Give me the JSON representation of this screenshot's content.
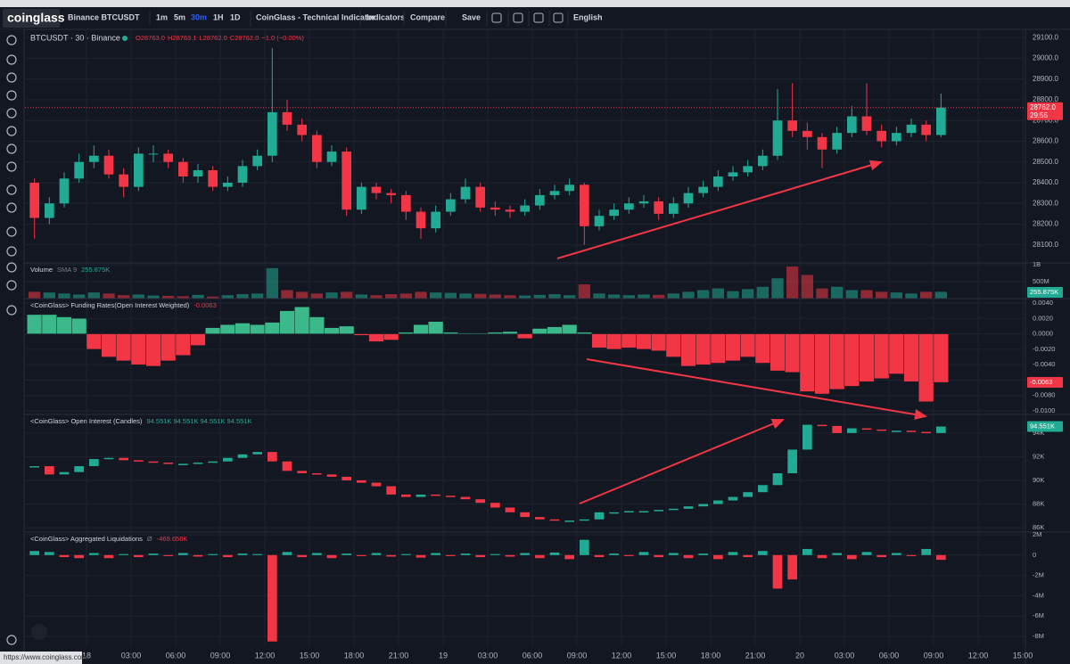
{
  "toolbar": {
    "logo": "coinglass",
    "symbol": "Binance BTCUSDT",
    "intervals": [
      "1m",
      "5m",
      "30m",
      "1H",
      "1D"
    ],
    "active_interval": 2,
    "buttons": [
      "CoinGlass - Technical Indicator",
      "Indicators",
      "Compare",
      "Save"
    ],
    "language": "English"
  },
  "status_url": "https://www.coinglass.com",
  "chart_data": {
    "type": "candlestick",
    "title": "BTCUSDT · 30 · Binance",
    "header_values": [
      "O28763.0",
      "H28763.1",
      "L28762.0",
      "C28762.0",
      "−1.0 (−0.00%)"
    ],
    "up_color": "#22ab94",
    "down_color": "#f23645",
    "grid": true,
    "xlim": [
      -4.14,
      63.18
    ],
    "xticks": [
      {
        "value": 0,
        "label": "18"
      },
      {
        "value": 3,
        "label": "03:00"
      },
      {
        "value": 6,
        "label": "06:00"
      },
      {
        "value": 9,
        "label": "09:00"
      },
      {
        "value": 12,
        "label": "12:00"
      },
      {
        "value": 15,
        "label": "15:00"
      },
      {
        "value": 18,
        "label": "18:00"
      },
      {
        "value": 21,
        "label": "21:00"
      },
      {
        "value": 24,
        "label": "19"
      },
      {
        "value": 27,
        "label": "03:00"
      },
      {
        "value": 30,
        "label": "06:00"
      },
      {
        "value": 33,
        "label": "09:00"
      },
      {
        "value": 36,
        "label": "12:00"
      },
      {
        "value": 39,
        "label": "15:00"
      },
      {
        "value": 42,
        "label": "18:00"
      },
      {
        "value": 45,
        "label": "21:00"
      },
      {
        "value": 48,
        "label": "20"
      },
      {
        "value": 51,
        "label": "03:00"
      },
      {
        "value": 54,
        "label": "06:00"
      },
      {
        "value": 57,
        "label": "09:00"
      },
      {
        "value": 60,
        "label": "12:00"
      },
      {
        "value": 63,
        "label": "15:00"
      }
    ],
    "ylim": [
      28013,
      29135
    ],
    "yticks": [
      {
        "value": 28100,
        "label": "28100.0"
      },
      {
        "value": 28200,
        "label": "28200.0"
      },
      {
        "value": 28300,
        "label": "28300.0"
      },
      {
        "value": 28400,
        "label": "28400.0"
      },
      {
        "value": 28500,
        "label": "28500.0"
      },
      {
        "value": 28600,
        "label": "28600.0"
      },
      {
        "value": 28700,
        "label": "28700.0"
      },
      {
        "value": 28800,
        "label": "28800.0"
      },
      {
        "value": 28900,
        "label": "28900.0"
      },
      {
        "value": 29000,
        "label": "29000.0"
      },
      {
        "value": 29100,
        "label": "29100.0"
      }
    ],
    "last_price_label": "28762.0",
    "countdown": "29:55",
    "x": [
      -3.5,
      -2.5,
      -1.5,
      -0.5,
      0.5,
      1.5,
      2.5,
      3.5,
      4.5,
      5.5,
      6.5,
      7.5,
      8.5,
      9.5,
      10.5,
      11.5,
      12.5,
      13.5,
      14.5,
      15.5,
      16.5,
      17.5,
      18.5,
      19.5,
      20.5,
      21.5,
      22.5,
      23.5,
      24.5,
      25.5,
      26.5,
      27.5,
      28.5,
      29.5,
      30.5,
      31.5,
      32.5,
      33.5,
      34.5,
      35.5,
      36.5,
      37.5,
      38.5,
      39.5,
      40.5,
      41.5,
      42.5,
      43.5,
      44.5,
      45.5,
      46.5,
      47.5,
      48.5,
      49.5,
      50.5,
      51.5,
      52.5,
      53.5,
      54.5,
      55.5,
      56.5,
      57.5
    ],
    "open": [
      28400,
      28230,
      28300,
      28420,
      28500,
      28530,
      28440,
      28380,
      28540,
      28540,
      28500,
      28430,
      28460,
      28380,
      28400,
      28480,
      28530,
      28740,
      28680,
      28630,
      28500,
      28550,
      28270,
      28380,
      28350,
      28340,
      28260,
      28180,
      28260,
      28320,
      28380,
      28280,
      28270,
      28260,
      28290,
      28340,
      28360,
      28390,
      28190,
      28240,
      28270,
      28300,
      28310,
      28250,
      28300,
      28350,
      28380,
      28430,
      28450,
      28480,
      28530,
      28700,
      28650,
      28620,
      28560,
      28640,
      28720,
      28650,
      28600,
      28640,
      28680,
      28630
    ],
    "high": [
      28420,
      28330,
      28450,
      28540,
      28580,
      28560,
      28470,
      28570,
      28580,
      28560,
      28520,
      28490,
      28480,
      28430,
      28510,
      28560,
      29050,
      28800,
      28710,
      28650,
      28580,
      28570,
      28400,
      28400,
      28370,
      28360,
      28280,
      28290,
      28350,
      28420,
      28400,
      28310,
      28290,
      28320,
      28370,
      28390,
      28420,
      28400,
      28270,
      28300,
      28330,
      28340,
      28330,
      28330,
      28380,
      28410,
      28460,
      28480,
      28510,
      28560,
      28850,
      28880,
      28690,
      28640,
      28670,
      28770,
      28880,
      28680,
      28670,
      28710,
      28700,
      28830
    ],
    "low": [
      28130,
      28200,
      28280,
      28400,
      28470,
      28420,
      28330,
      28360,
      28500,
      28470,
      28400,
      28400,
      28360,
      28360,
      28380,
      28460,
      28500,
      28650,
      28600,
      28470,
      28480,
      28240,
      28250,
      28320,
      28300,
      28220,
      28130,
      28160,
      28240,
      28300,
      28260,
      28240,
      28230,
      28240,
      28270,
      28320,
      28340,
      28100,
      28170,
      28220,
      28250,
      28280,
      28220,
      28230,
      28280,
      28330,
      28360,
      28410,
      28430,
      28460,
      28510,
      28620,
      28560,
      28470,
      28540,
      28620,
      28630,
      28570,
      28580,
      28620,
      28600,
      28620
    ],
    "close": [
      28230,
      28300,
      28420,
      28500,
      28530,
      28440,
      28380,
      28540,
      28540,
      28500,
      28430,
      28460,
      28380,
      28400,
      28480,
      28530,
      28740,
      28680,
      28630,
      28500,
      28550,
      28270,
      28380,
      28350,
      28340,
      28260,
      28180,
      28260,
      28320,
      28380,
      28280,
      28270,
      28260,
      28290,
      28340,
      28360,
      28390,
      28190,
      28240,
      28270,
      28300,
      28310,
      28250,
      28300,
      28350,
      28380,
      28430,
      28450,
      28480,
      28530,
      28700,
      28650,
      28620,
      28560,
      28640,
      28720,
      28650,
      28600,
      28640,
      28680,
      28630,
      28762
    ],
    "panes": [
      {
        "type": "volume",
        "title": "Volume",
        "subtitle": "SMA 9",
        "legend_value": "255.875K",
        "badge": "255.875K",
        "ylim": [
          0,
          1055000000
        ],
        "yticks": [
          {
            "value": 500000000,
            "label": "500M"
          },
          {
            "value": 1000000000,
            "label": "1B"
          }
        ],
        "values": [
          200000000,
          180000000,
          150000000,
          120000000,
          180000000,
          150000000,
          100000000,
          120000000,
          90000000,
          80000000,
          70000000,
          110000000,
          60000000,
          100000000,
          130000000,
          150000000,
          900000000,
          250000000,
          200000000,
          150000000,
          180000000,
          200000000,
          120000000,
          100000000,
          130000000,
          150000000,
          200000000,
          180000000,
          170000000,
          150000000,
          140000000,
          120000000,
          100000000,
          90000000,
          110000000,
          130000000,
          100000000,
          420000000,
          150000000,
          120000000,
          100000000,
          120000000,
          110000000,
          150000000,
          200000000,
          250000000,
          300000000,
          220000000,
          280000000,
          350000000,
          600000000,
          950000000,
          700000000,
          300000000,
          350000000,
          250000000,
          250000000,
          200000000,
          180000000,
          150000000,
          200000000,
          200000000
        ]
      },
      {
        "type": "histogram",
        "title": "<CoinGlass> Funding Rates(Open Interest Weighted)",
        "legend_value": "-0.0063",
        "badge": "-0.0063",
        "pos_color": "#3bb98a",
        "neg_color": "#f23645",
        "ylim": [
          -0.01046,
          0.00458
        ],
        "yticks": [
          {
            "value": -0.01,
            "label": "-0.0100"
          },
          {
            "value": -0.008,
            "label": "-0.0080"
          },
          {
            "value": -0.006,
            "label": "-0.0060"
          },
          {
            "value": -0.004,
            "label": "-0.0040"
          },
          {
            "value": -0.002,
            "label": "-0.0020"
          },
          {
            "value": 0,
            "label": "0.0000"
          },
          {
            "value": 0.002,
            "label": "0.0020"
          },
          {
            "value": 0.004,
            "label": "0.0040"
          }
        ],
        "values": [
          0.0025,
          0.0025,
          0.0022,
          0.002,
          -0.002,
          -0.003,
          -0.0035,
          -0.004,
          -0.0042,
          -0.0035,
          -0.0028,
          -0.0015,
          0.0008,
          0.0012,
          0.0014,
          0.0012,
          0.0015,
          0.003,
          0.0035,
          0.0022,
          0.0008,
          0.001,
          -0.0002,
          -0.001,
          -0.0008,
          0.0002,
          0.0012,
          0.0016,
          0.0002,
          0.0001,
          0.0001,
          0.0002,
          0.0003,
          -0.0006,
          0.0007,
          0.0009,
          0.0012,
          0.0002,
          -0.0018,
          -0.002,
          -0.0018,
          -0.002,
          -0.0022,
          -0.003,
          -0.0042,
          -0.004,
          -0.0038,
          -0.0035,
          -0.003,
          -0.0038,
          -0.0048,
          -0.005,
          -0.0075,
          -0.0078,
          -0.0072,
          -0.0068,
          -0.0062,
          -0.0058,
          -0.0052,
          -0.0062,
          -0.0088,
          -0.0063
        ]
      },
      {
        "type": "oi_candles",
        "title": "<CoinGlass> Open Interest (Candles)",
        "legend_value": "94.551K 94.551K 94.551K 94.551K",
        "badge": "94.551K",
        "ylim": [
          85625,
          95573
        ],
        "yticks": [
          {
            "value": 86000,
            "label": "86K"
          },
          {
            "value": 88000,
            "label": "88K"
          },
          {
            "value": 90000,
            "label": "90K"
          },
          {
            "value": 92000,
            "label": "92K"
          },
          {
            "value": 94000,
            "label": "94K"
          }
        ],
        "values": [
          91200,
          90500,
          90700,
          91200,
          91800,
          91900,
          91700,
          91600,
          91500,
          91400,
          91400,
          91500,
          91600,
          91900,
          92200,
          92400,
          91600,
          90800,
          90600,
          90500,
          90300,
          90000,
          89800,
          89500,
          88800,
          88600,
          88800,
          88700,
          88600,
          88400,
          88100,
          87700,
          87300,
          86900,
          86700,
          86600,
          86600,
          86700,
          87300,
          87300,
          87400,
          87400,
          87500,
          87600,
          87800,
          88000,
          88300,
          88600,
          89000,
          89600,
          90600,
          92600,
          94700,
          94600,
          94000,
          94400,
          94300,
          94200,
          94200,
          94100,
          94000,
          94551
        ]
      },
      {
        "type": "signed_bars",
        "title": "<CoinGlass> Aggregated Liquidations",
        "subtitle": "Ø",
        "legend_value": "-469.658K",
        "ylim": [
          -8960000,
          2260000
        ],
        "yticks": [
          {
            "value": -8000000,
            "label": "-8M"
          },
          {
            "value": -6000000,
            "label": "-6M"
          },
          {
            "value": -4000000,
            "label": "-4M"
          },
          {
            "value": -2000000,
            "label": "-2M"
          },
          0,
          {
            "value": 2000000,
            "label": "2M"
          }
        ],
        "values": [
          400000,
          300000,
          -200000,
          -300000,
          200000,
          -300000,
          100000,
          -200000,
          150000,
          -100000,
          200000,
          -150000,
          100000,
          -200000,
          150000,
          100000,
          -8500000,
          300000,
          -200000,
          200000,
          -300000,
          150000,
          -100000,
          200000,
          -150000,
          100000,
          -250000,
          200000,
          -100000,
          150000,
          -200000,
          100000,
          -150000,
          200000,
          -300000,
          250000,
          -400000,
          1500000,
          -200000,
          150000,
          -100000,
          300000,
          -200000,
          200000,
          -300000,
          150000,
          -400000,
          300000,
          -200000,
          400000,
          -3300000,
          -2400000,
          600000,
          -300000,
          200000,
          -400000,
          300000,
          -200000,
          200000,
          -100000,
          600000,
          -469658
        ]
      }
    ]
  }
}
